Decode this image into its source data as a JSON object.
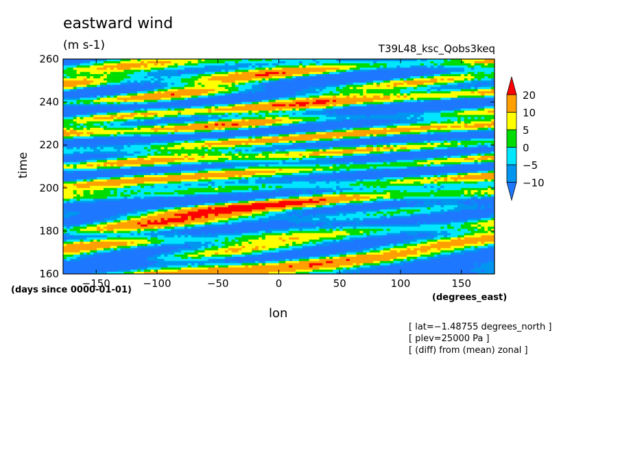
{
  "chart_data": {
    "type": "heatmap",
    "title": "eastward wind",
    "units": "(m s-1)",
    "run_label": "T39L48_ksc_Qobs3keq",
    "xlabel": "lon",
    "ylabel": "time",
    "x_units": "(degrees_east)",
    "y_units": "(days since 0000-01-01)",
    "xlim": [
      -177.1875,
      177.1875
    ],
    "ylim": [
      160,
      260
    ],
    "x_ticks": [
      -150,
      -100,
      -50,
      0,
      50,
      100,
      150
    ],
    "y_ticks": [
      160,
      180,
      200,
      220,
      240,
      260
    ],
    "x_tick_labels": [
      "−150",
      "−100",
      "−50",
      "0",
      "50",
      "100",
      "150"
    ],
    "y_tick_labels": [
      "160",
      "180",
      "200",
      "220",
      "240",
      "260"
    ],
    "colorbar": {
      "levels": [
        -10,
        -5,
        0,
        5,
        10,
        20
      ],
      "labels": [
        "−10",
        "−5",
        "0",
        "5",
        "10",
        "20"
      ],
      "colors": [
        "#1e78ff",
        "#0096f0",
        "#00e6ff",
        "#00dc00",
        "#ffff00",
        "#ffa000",
        "#ff0000"
      ],
      "extend": "both"
    },
    "annotations": [
      "[ lat=−1.48755 degrees_north ]",
      "[ plev=25000 Pa ]",
      "[ (diff) from (mean) zonal ]"
    ]
  }
}
